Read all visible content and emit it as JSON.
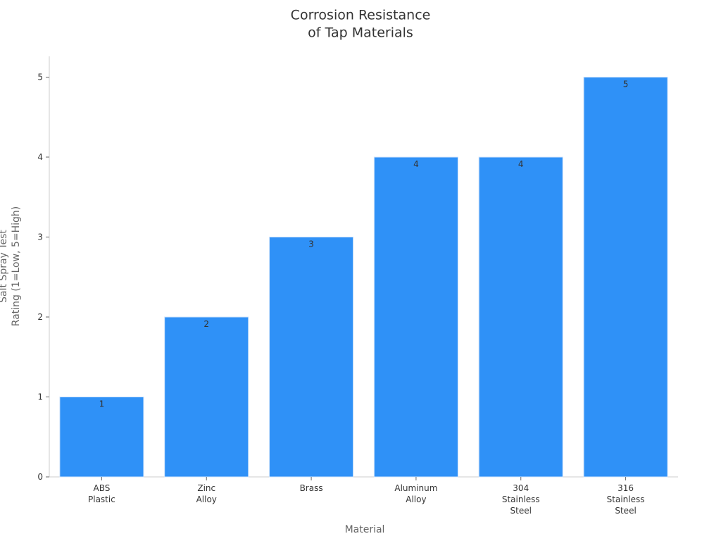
{
  "chart_data": {
    "type": "bar",
    "title": "Corrosion Resistance\nof Tap Materials",
    "x_label": "Material",
    "y_label": "Salt Spray Test\nRating (1=Low, 5=High)",
    "categories": [
      "ABS\nPlastic",
      "Zinc\nAlloy",
      "Brass",
      "Aluminum\nAlloy",
      "304\nStainless\nSteel",
      "316\nStainless\nSteel"
    ],
    "values": [
      1,
      2,
      3,
      4,
      4,
      5
    ],
    "color": "#2f91f7",
    "ylim": [
      0,
      5.26
    ],
    "yticks": [
      0,
      1,
      2,
      3,
      4,
      5
    ],
    "grid": false
  }
}
